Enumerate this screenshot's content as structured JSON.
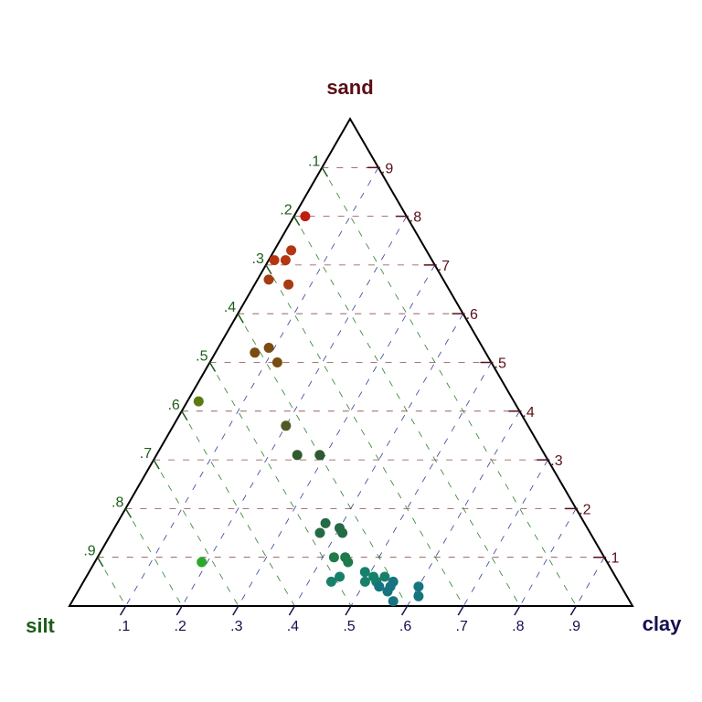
{
  "chart_data": {
    "type": "ternary-scatter",
    "vertices": {
      "top": {
        "label": "sand",
        "color": "#5a0e16"
      },
      "left": {
        "label": "silt",
        "color": "#1b5e1b"
      },
      "right": {
        "label": "clay",
        "color": "#15104f"
      }
    },
    "tick_values": [
      0.1,
      0.2,
      0.3,
      0.4,
      0.5,
      0.6,
      0.7,
      0.8,
      0.9
    ],
    "tick_labels": [
      ".1",
      ".2",
      ".3",
      ".4",
      ".5",
      ".6",
      ".7",
      ".8",
      ".9"
    ],
    "grid_colors": {
      "sand": "#8b4a4a",
      "silt": "#2e7d2e",
      "clay": "#3a3a9a"
    },
    "points": [
      {
        "sand": 0.8,
        "silt": 0.18,
        "clay": 0.02,
        "color": "#bf1f0c"
      },
      {
        "sand": 0.73,
        "silt": 0.24,
        "clay": 0.03,
        "color": "#b53510"
      },
      {
        "sand": 0.71,
        "silt": 0.28,
        "clay": 0.01,
        "color": "#b53510"
      },
      {
        "sand": 0.71,
        "silt": 0.26,
        "clay": 0.03,
        "color": "#b53510"
      },
      {
        "sand": 0.67,
        "silt": 0.31,
        "clay": 0.02,
        "color": "#a63c12"
      },
      {
        "sand": 0.66,
        "silt": 0.28,
        "clay": 0.06,
        "color": "#a63c12"
      },
      {
        "sand": 0.52,
        "silt": 0.41,
        "clay": 0.07,
        "color": "#7a4c12"
      },
      {
        "sand": 0.53,
        "silt": 0.38,
        "clay": 0.09,
        "color": "#7a4c12"
      },
      {
        "sand": 0.5,
        "silt": 0.38,
        "clay": 0.12,
        "color": "#7a4c12"
      },
      {
        "sand": 0.42,
        "silt": 0.56,
        "clay": 0.02,
        "color": "#5b7a10"
      },
      {
        "sand": 0.37,
        "silt": 0.43,
        "clay": 0.2,
        "color": "#4f5a24"
      },
      {
        "sand": 0.31,
        "silt": 0.44,
        "clay": 0.25,
        "color": "#2f5a2e"
      },
      {
        "sand": 0.31,
        "silt": 0.4,
        "clay": 0.29,
        "color": "#2f5a2e"
      },
      {
        "sand": 0.17,
        "silt": 0.46,
        "clay": 0.37,
        "color": "#246a44"
      },
      {
        "sand": 0.16,
        "silt": 0.44,
        "clay": 0.4,
        "color": "#246a44"
      },
      {
        "sand": 0.15,
        "silt": 0.48,
        "clay": 0.37,
        "color": "#246a44"
      },
      {
        "sand": 0.15,
        "silt": 0.44,
        "clay": 0.41,
        "color": "#246a44"
      },
      {
        "sand": 0.09,
        "silt": 0.72,
        "clay": 0.19,
        "color": "#2aa82a"
      },
      {
        "sand": 0.1,
        "silt": 0.48,
        "clay": 0.42,
        "color": "#1f7a4a"
      },
      {
        "sand": 0.1,
        "silt": 0.46,
        "clay": 0.44,
        "color": "#1f7a4a"
      },
      {
        "sand": 0.09,
        "silt": 0.46,
        "clay": 0.45,
        "color": "#1f7a4a"
      },
      {
        "sand": 0.07,
        "silt": 0.44,
        "clay": 0.49,
        "color": "#17806a"
      },
      {
        "sand": 0.06,
        "silt": 0.43,
        "clay": 0.51,
        "color": "#17806a"
      },
      {
        "sand": 0.06,
        "silt": 0.49,
        "clay": 0.45,
        "color": "#17806a"
      },
      {
        "sand": 0.05,
        "silt": 0.51,
        "clay": 0.44,
        "color": "#17806a"
      },
      {
        "sand": 0.05,
        "silt": 0.45,
        "clay": 0.5,
        "color": "#17806a"
      },
      {
        "sand": 0.05,
        "silt": 0.43,
        "clay": 0.52,
        "color": "#17806a"
      },
      {
        "sand": 0.06,
        "silt": 0.41,
        "clay": 0.53,
        "color": "#17806a"
      },
      {
        "sand": 0.05,
        "silt": 0.4,
        "clay": 0.55,
        "color": "#157480"
      },
      {
        "sand": 0.04,
        "silt": 0.43,
        "clay": 0.53,
        "color": "#157480"
      },
      {
        "sand": 0.04,
        "silt": 0.41,
        "clay": 0.55,
        "color": "#157480"
      },
      {
        "sand": 0.03,
        "silt": 0.42,
        "clay": 0.55,
        "color": "#157480"
      },
      {
        "sand": 0.04,
        "silt": 0.36,
        "clay": 0.6,
        "color": "#157480"
      },
      {
        "sand": 0.02,
        "silt": 0.37,
        "clay": 0.61,
        "color": "#157480"
      },
      {
        "sand": 0.01,
        "silt": 0.42,
        "clay": 0.57,
        "color": "#157480"
      }
    ]
  }
}
